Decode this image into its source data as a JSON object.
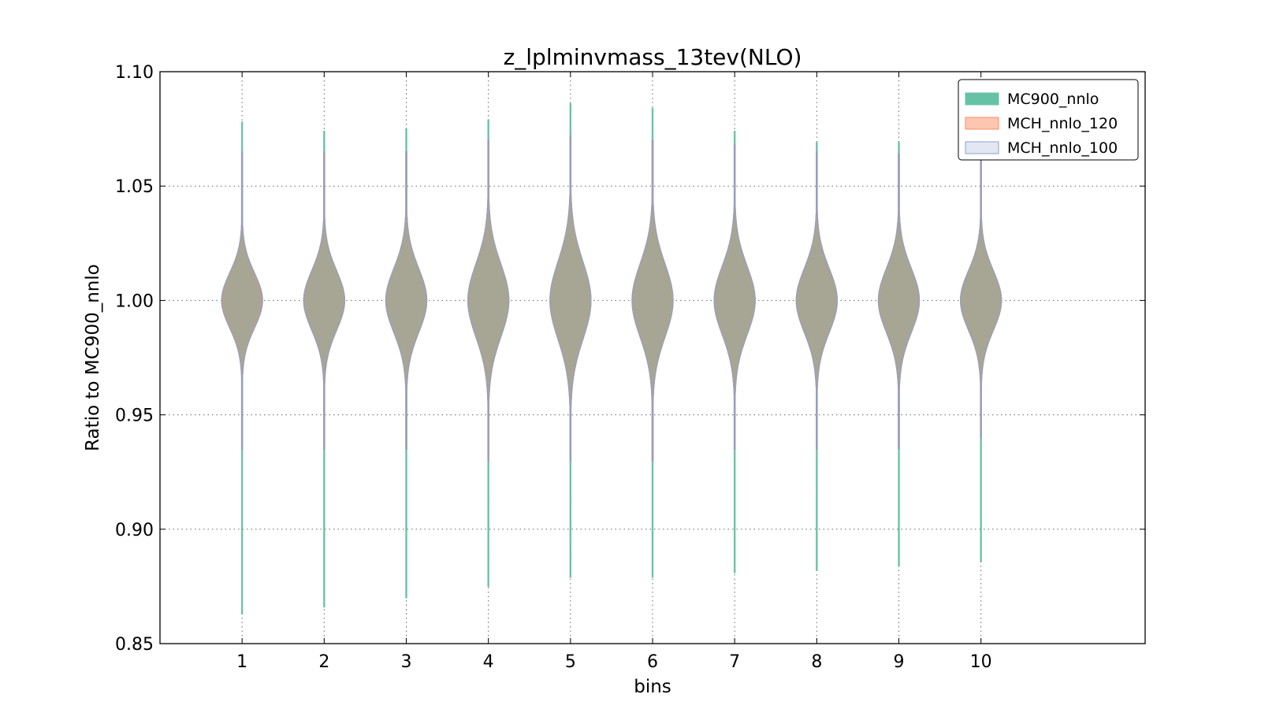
{
  "chart_data": {
    "type": "violin",
    "title": "z_lplminvmass_13tev(NLO)",
    "xlabel": "bins",
    "ylabel": "Ratio to MC900_nnlo",
    "xlim": [
      0,
      12
    ],
    "ylim": [
      0.85,
      1.1
    ],
    "x_ticks": [
      1,
      2,
      3,
      4,
      5,
      6,
      7,
      8,
      9,
      10
    ],
    "x_tick_labels": [
      "1",
      "2",
      "3",
      "4",
      "5",
      "6",
      "7",
      "8",
      "9",
      "10"
    ],
    "y_ticks": [
      0.85,
      0.9,
      0.95,
      1.0,
      1.05,
      1.1
    ],
    "y_tick_labels": [
      "0.85",
      "0.90",
      "0.95",
      "1.00",
      "1.05",
      "1.10"
    ],
    "grid": true,
    "legend_position": "top-right",
    "categories": [
      1,
      2,
      3,
      4,
      5,
      6,
      7,
      8,
      9,
      10
    ],
    "series": [
      {
        "name": "MC900_nnlo",
        "color": "#66c2a5",
        "fill_opacity": 1.0,
        "edge_color": "#66c2a5",
        "min": [
          0.863,
          0.866,
          0.87,
          0.875,
          0.879,
          0.879,
          0.881,
          0.882,
          0.884,
          0.886
        ],
        "max": [
          1.078,
          1.074,
          1.075,
          1.079,
          1.086,
          1.084,
          1.074,
          1.069,
          1.069,
          1.063
        ],
        "center": 1.0,
        "max_halfwidth": [
          0.25,
          0.25,
          0.25,
          0.25,
          0.25,
          0.25,
          0.25,
          0.25,
          0.25,
          0.25
        ],
        "spread": [
          0.012,
          0.013,
          0.014,
          0.016,
          0.017,
          0.016,
          0.015,
          0.014,
          0.014,
          0.013
        ]
      },
      {
        "name": "MCH_nnlo_120",
        "color": "#fc8d62",
        "fill_opacity": 0.5,
        "edge_color": "#fc8d62",
        "min": [
          0.935,
          0.935,
          0.935,
          0.93,
          0.93,
          0.93,
          0.935,
          0.935,
          0.935,
          0.94
        ],
        "max": [
          1.065,
          1.065,
          1.065,
          1.07,
          1.072,
          1.07,
          1.068,
          1.065,
          1.064,
          1.062
        ],
        "center": 1.0,
        "max_halfwidth": [
          0.24,
          0.25,
          0.25,
          0.25,
          0.25,
          0.25,
          0.25,
          0.25,
          0.25,
          0.25
        ],
        "spread": [
          0.012,
          0.013,
          0.014,
          0.016,
          0.017,
          0.016,
          0.015,
          0.014,
          0.014,
          0.013
        ]
      },
      {
        "name": "MCH_nnlo_100",
        "color": "#8da0cb",
        "fill_opacity": 0.25,
        "edge_color": "#8da0cb",
        "min": [
          0.935,
          0.935,
          0.935,
          0.93,
          0.93,
          0.93,
          0.935,
          0.935,
          0.935,
          0.94
        ],
        "max": [
          1.065,
          1.065,
          1.065,
          1.07,
          1.072,
          1.07,
          1.068,
          1.065,
          1.064,
          1.062
        ],
        "center": 1.0,
        "max_halfwidth": [
          0.25,
          0.25,
          0.25,
          0.25,
          0.25,
          0.25,
          0.25,
          0.25,
          0.25,
          0.25
        ],
        "spread": [
          0.012,
          0.013,
          0.014,
          0.016,
          0.017,
          0.016,
          0.015,
          0.014,
          0.014,
          0.013
        ]
      }
    ]
  }
}
